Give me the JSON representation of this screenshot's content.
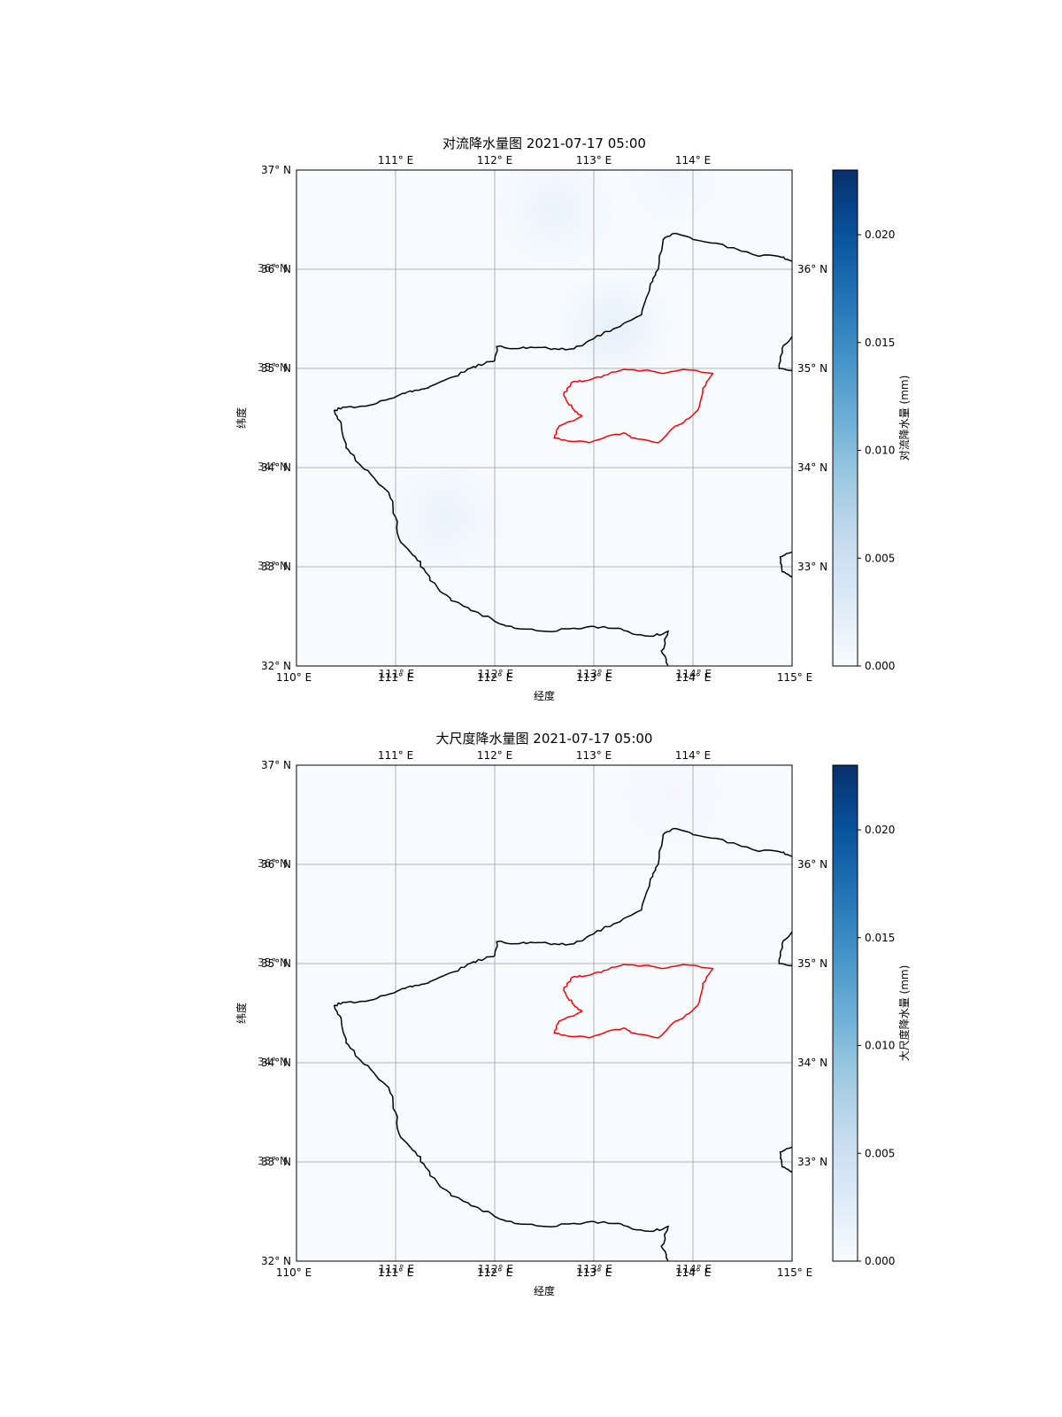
{
  "figure": {
    "panels": [
      {
        "title": "对流降水量图 2021-07-17 05:00",
        "xlabel": "经度",
        "ylabel": "纬度",
        "colorbar_label": "对流降水量 (mm)",
        "x_ticks_top": [
          "111° E",
          "112° E",
          "113° E",
          "114° E"
        ],
        "x_ticks_bottom": [
          "110° E",
          "111° E",
          "112° E",
          "113° E",
          "114° E",
          "115° E"
        ],
        "y_ticks_left": [
          "37° N",
          "36° N",
          "35° N",
          "34° N",
          "33° N",
          "32° N"
        ],
        "y_ticks_right": [
          "36° N",
          "35° N",
          "34° N",
          "33° N"
        ],
        "colorbar_ticks": [
          "0.000",
          "0.005",
          "0.010",
          "0.015",
          "0.020"
        ]
      },
      {
        "title": "大尺度降水量图 2021-07-17 05:00",
        "xlabel": "经度",
        "ylabel": "纬度",
        "colorbar_label": "大尺度降水量 (mm)",
        "x_ticks_top": [
          "111° E",
          "112° E",
          "113° E",
          "114° E"
        ],
        "x_ticks_bottom": [
          "110° E",
          "111° E",
          "112° E",
          "113° E",
          "114° E",
          "115° E"
        ],
        "y_ticks_left": [
          "37° N",
          "36° N",
          "35° N",
          "34° N",
          "33° N",
          "32° N"
        ],
        "y_ticks_right": [
          "36° N",
          "35° N",
          "34° N",
          "33° N"
        ],
        "colorbar_ticks": [
          "0.000",
          "0.005",
          "0.010",
          "0.015",
          "0.020"
        ]
      }
    ]
  },
  "chart_data": [
    {
      "type": "heatmap",
      "title": "对流降水量图 2021-07-17 05:00",
      "xlabel": "经度",
      "ylabel": "纬度",
      "xlim": [
        110,
        115
      ],
      "ylim": [
        32,
        37
      ],
      "grid": true,
      "colormap": "Blues",
      "vmin": 0.0,
      "vmax": 0.023,
      "colorbar_label": "对流降水量 (mm)",
      "colorbar_ticks": [
        0.0,
        0.005,
        0.01,
        0.015,
        0.02
      ],
      "blobs": [
        {
          "lon": 112.6,
          "lat": 36.6,
          "value": 0.0015,
          "sigma": 0.38
        },
        {
          "lon": 113.2,
          "lat": 35.4,
          "value": 0.002,
          "sigma": 0.38
        },
        {
          "lon": 111.5,
          "lat": 33.5,
          "value": 0.0015,
          "sigma": 0.4
        },
        {
          "lon": 113.8,
          "lat": 36.9,
          "value": 0.0008,
          "sigma": 0.3
        }
      ]
    },
    {
      "type": "heatmap",
      "title": "大尺度降水量图 2021-07-17 05:00",
      "xlabel": "经度",
      "ylabel": "纬度",
      "xlim": [
        110,
        115
      ],
      "ylim": [
        32,
        37
      ],
      "grid": true,
      "colormap": "Blues",
      "vmin": 0.0,
      "vmax": 0.023,
      "colorbar_label": "大尺度降水量 (mm)",
      "colorbar_ticks": [
        0.0,
        0.005,
        0.01,
        0.015,
        0.02
      ],
      "blobs": [
        {
          "lon": 113.8,
          "lat": 36.7,
          "value": 0.0005,
          "sigma": 0.35
        }
      ]
    }
  ],
  "map": {
    "province_boundary_color": "#000000",
    "highlight_region_color": "#ff0000",
    "province_boundary": [
      [
        110.38,
        34.58
      ],
      [
        110.5,
        34.61
      ],
      [
        110.7,
        34.62
      ],
      [
        110.9,
        34.68
      ],
      [
        111.1,
        34.75
      ],
      [
        111.2,
        34.78
      ],
      [
        111.35,
        34.82
      ],
      [
        111.6,
        34.92
      ],
      [
        111.75,
        35.0
      ],
      [
        111.9,
        35.05
      ],
      [
        112.0,
        35.08
      ],
      [
        112.02,
        35.22
      ],
      [
        112.2,
        35.2
      ],
      [
        112.4,
        35.21
      ],
      [
        112.6,
        35.2
      ],
      [
        112.8,
        35.2
      ],
      [
        113.0,
        35.3
      ],
      [
        113.2,
        35.4
      ],
      [
        113.48,
        35.54
      ],
      [
        113.57,
        35.85
      ],
      [
        113.65,
        36.0
      ],
      [
        113.7,
        36.3
      ],
      [
        113.8,
        36.36
      ],
      [
        114.0,
        36.3
      ],
      [
        114.3,
        36.25
      ],
      [
        114.6,
        36.15
      ],
      [
        114.9,
        36.12
      ],
      [
        115.0,
        36.08
      ]
    ],
    "province_south_boundary": [
      [
        110.38,
        34.58
      ],
      [
        110.45,
        34.45
      ],
      [
        110.5,
        34.2
      ],
      [
        110.62,
        34.05
      ],
      [
        110.78,
        33.9
      ],
      [
        110.93,
        33.75
      ],
      [
        111.0,
        33.5
      ],
      [
        111.05,
        33.25
      ],
      [
        111.2,
        33.1
      ],
      [
        111.3,
        32.95
      ],
      [
        111.45,
        32.75
      ],
      [
        111.6,
        32.65
      ],
      [
        111.8,
        32.55
      ],
      [
        112.0,
        32.45
      ],
      [
        112.2,
        32.38
      ],
      [
        112.5,
        32.35
      ],
      [
        112.8,
        32.38
      ],
      [
        113.0,
        32.4
      ],
      [
        113.25,
        32.38
      ],
      [
        113.4,
        32.32
      ],
      [
        113.6,
        32.3
      ],
      [
        113.75,
        32.35
      ],
      [
        113.68,
        32.15
      ],
      [
        113.75,
        32.0
      ]
    ],
    "east_fragment_north": [
      [
        115.0,
        35.32
      ],
      [
        114.9,
        35.2
      ],
      [
        114.87,
        35.0
      ],
      [
        115.0,
        34.98
      ]
    ],
    "east_fragment_south": [
      [
        115.0,
        33.15
      ],
      [
        114.88,
        33.1
      ],
      [
        114.9,
        32.95
      ],
      [
        115.0,
        32.9
      ]
    ],
    "highlight_region": [
      [
        112.7,
        34.76
      ],
      [
        112.8,
        34.87
      ],
      [
        112.95,
        34.88
      ],
      [
        113.1,
        34.93
      ],
      [
        113.3,
        34.99
      ],
      [
        113.5,
        34.98
      ],
      [
        113.7,
        34.95
      ],
      [
        113.9,
        34.99
      ],
      [
        114.2,
        34.95
      ],
      [
        114.1,
        34.8
      ],
      [
        114.05,
        34.58
      ],
      [
        113.9,
        34.45
      ],
      [
        113.8,
        34.4
      ],
      [
        113.65,
        34.25
      ],
      [
        113.4,
        34.3
      ],
      [
        113.3,
        34.35
      ],
      [
        113.1,
        34.3
      ],
      [
        112.95,
        34.25
      ],
      [
        112.7,
        34.28
      ],
      [
        112.6,
        34.3
      ],
      [
        112.65,
        34.42
      ],
      [
        112.88,
        34.52
      ],
      [
        112.8,
        34.58
      ],
      [
        112.72,
        34.68
      ],
      [
        112.7,
        34.76
      ]
    ]
  }
}
